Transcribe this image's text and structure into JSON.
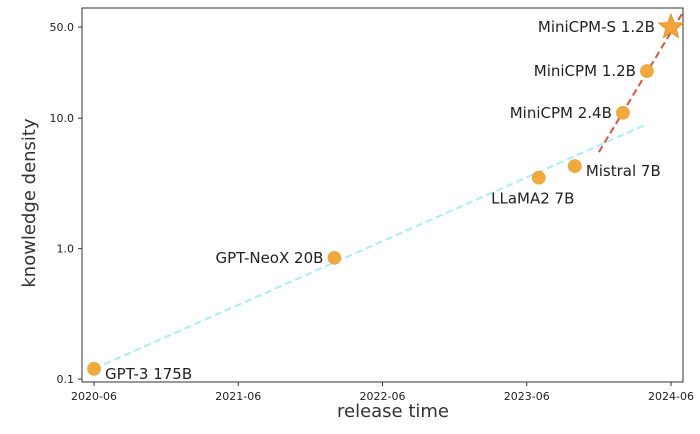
{
  "chart_data": {
    "type": "scatter",
    "title": "",
    "xlabel": "release time",
    "ylabel": "knowledge density",
    "y_scale": "log",
    "grid": false,
    "xlim": [
      "2020-05",
      "2024-07"
    ],
    "ylim": [
      0.095,
      70
    ],
    "x_ticks": [
      "2020-06",
      "2021-06",
      "2022-06",
      "2023-06",
      "2024-06"
    ],
    "y_ticks": [
      {
        "value": 0.1,
        "label": "0.1"
      },
      {
        "value": 1.0,
        "label": "1.0"
      },
      {
        "value": 10.0,
        "label": "10.0"
      },
      {
        "value": 50.0,
        "label": "50.0"
      }
    ],
    "points": [
      {
        "name": "GPT-3 175B",
        "date": "2020-06",
        "y": 0.12,
        "marker": "circle",
        "label_side": "right"
      },
      {
        "name": "GPT-NeoX 20B",
        "date": "2022-02",
        "y": 0.85,
        "marker": "circle",
        "label_side": "left"
      },
      {
        "name": "LLaMA2 7B",
        "date": "2023-07",
        "y": 3.5,
        "marker": "circle",
        "label_side": "below"
      },
      {
        "name": "Mistral 7B",
        "date": "2023-10",
        "y": 4.3,
        "marker": "circle",
        "label_side": "right"
      },
      {
        "name": "MiniCPM 2.4B",
        "date": "2024-02",
        "y": 11.0,
        "marker": "circle",
        "label_side": "left"
      },
      {
        "name": "MiniCPM 1.2B",
        "date": "2024-04",
        "y": 23.0,
        "marker": "circle",
        "label_side": "left"
      },
      {
        "name": "MiniCPM-S 1.2B",
        "date": "2024-06",
        "y": 50.0,
        "marker": "star",
        "label_side": "left"
      }
    ],
    "trend_lines": [
      {
        "from": {
          "date": "2020-06",
          "y": 0.12
        },
        "to": {
          "date": "2024-04",
          "y": 9.0
        },
        "color": "#a7eef8",
        "style": "dashed"
      },
      {
        "from": {
          "date": "2023-12",
          "y": 5.5
        },
        "to": {
          "date": "2024-07",
          "y": 65.0
        },
        "color": "#d9553b",
        "style": "dashed"
      }
    ],
    "colors": {
      "point": "#f2a93b",
      "star": "#f5a43a",
      "axis": "#333333"
    }
  }
}
